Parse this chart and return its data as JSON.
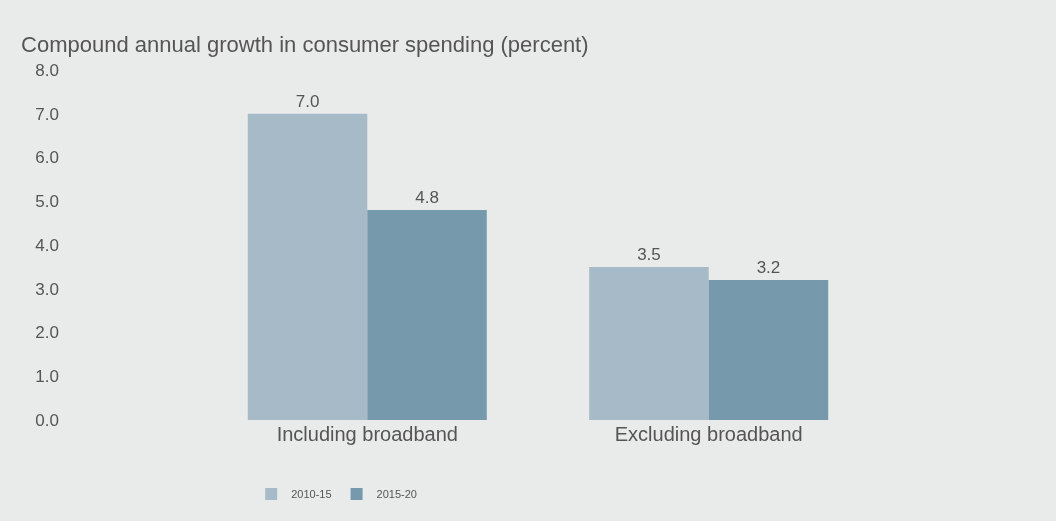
{
  "chart_data": {
    "type": "bar",
    "title": "Compound annual growth in consumer spending (percent)",
    "categories": [
      "Including broadband",
      "Excluding broadband"
    ],
    "series": [
      {
        "name": "2010-15",
        "color": "#a6bac8",
        "values": [
          7.0,
          3.5
        ],
        "value_labels": [
          "7.0",
          "3.5"
        ]
      },
      {
        "name": "2015-20",
        "color": "#7799ac",
        "values": [
          4.8,
          3.2
        ],
        "value_labels": [
          "4.8",
          "3.2"
        ]
      }
    ],
    "ylim": [
      0,
      8
    ],
    "yticks": [
      {
        "value": 0,
        "label": "0.0"
      },
      {
        "value": 1,
        "label": "1.0"
      },
      {
        "value": 2,
        "label": "2.0"
      },
      {
        "value": 3,
        "label": "3.0"
      },
      {
        "value": 4,
        "label": "4.0"
      },
      {
        "value": 5,
        "label": "5.0"
      },
      {
        "value": 6,
        "label": "6.0"
      },
      {
        "value": 7,
        "label": "7.0"
      },
      {
        "value": 8,
        "label": "8.0"
      }
    ],
    "grid": false,
    "legend": "bottom left"
  }
}
